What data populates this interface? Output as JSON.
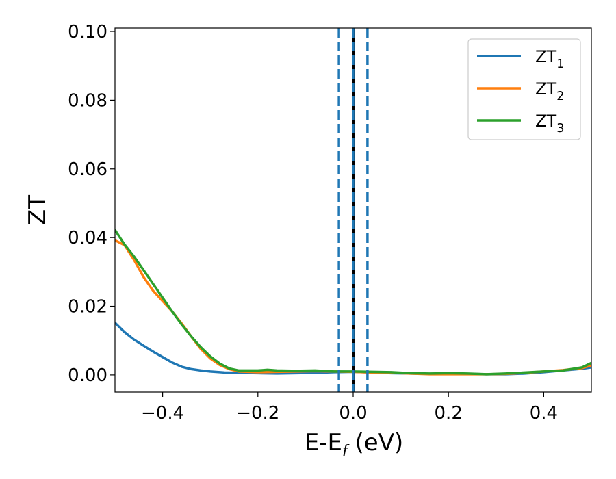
{
  "chart_data": {
    "type": "line",
    "title": "",
    "xlabel": {
      "main": "E-E",
      "subscript": "f",
      "suffix": " (eV)"
    },
    "ylabel": "ZT",
    "xlim": [
      -0.5,
      0.5
    ],
    "ylim": [
      -0.005,
      0.101
    ],
    "xticks": [
      -0.4,
      -0.2,
      0.0,
      0.2,
      0.4
    ],
    "xtick_labels": [
      "−0.4",
      "−0.2",
      "0.0",
      "0.2",
      "0.4"
    ],
    "yticks": [
      0.0,
      0.02,
      0.04,
      0.06,
      0.08,
      0.1
    ],
    "ytick_labels": [
      "0.00",
      "0.02",
      "0.04",
      "0.06",
      "0.08",
      "0.10"
    ],
    "grid": false,
    "legend_position": "top-right",
    "series": [
      {
        "name": "ZT",
        "subscript": "1",
        "color": "#1f77b4",
        "points": [
          [
            -0.5,
            0.0152
          ],
          [
            -0.48,
            0.0125
          ],
          [
            -0.46,
            0.0103
          ],
          [
            -0.44,
            0.0085
          ],
          [
            -0.42,
            0.0068
          ],
          [
            -0.4,
            0.0052
          ],
          [
            -0.38,
            0.0036
          ],
          [
            -0.36,
            0.0024
          ],
          [
            -0.34,
            0.0017
          ],
          [
            -0.32,
            0.0013
          ],
          [
            -0.3,
            0.001
          ],
          [
            -0.27,
            0.0007
          ],
          [
            -0.24,
            0.0006
          ],
          [
            -0.2,
            0.0005
          ],
          [
            -0.16,
            0.0004
          ],
          [
            -0.12,
            0.0005
          ],
          [
            -0.08,
            0.0006
          ],
          [
            -0.04,
            0.0008
          ],
          [
            0.0,
            0.0009
          ],
          [
            0.04,
            0.0007
          ],
          [
            0.08,
            0.0005
          ],
          [
            0.12,
            0.0004
          ],
          [
            0.16,
            0.0003
          ],
          [
            0.2,
            0.0003
          ],
          [
            0.24,
            0.0003
          ],
          [
            0.28,
            0.0002
          ],
          [
            0.32,
            0.0002
          ],
          [
            0.36,
            0.0004
          ],
          [
            0.4,
            0.0008
          ],
          [
            0.44,
            0.0013
          ],
          [
            0.48,
            0.0018
          ],
          [
            0.5,
            0.0022
          ]
        ]
      },
      {
        "name": "ZT",
        "subscript": "2",
        "color": "#ff7f0e",
        "points": [
          [
            -0.5,
            0.0392
          ],
          [
            -0.48,
            0.0378
          ],
          [
            -0.46,
            0.0335
          ],
          [
            -0.44,
            0.0285
          ],
          [
            -0.42,
            0.0245
          ],
          [
            -0.4,
            0.0215
          ],
          [
            -0.38,
            0.0185
          ],
          [
            -0.36,
            0.015
          ],
          [
            -0.34,
            0.0112
          ],
          [
            -0.32,
            0.0076
          ],
          [
            -0.3,
            0.0048
          ],
          [
            -0.28,
            0.0029
          ],
          [
            -0.26,
            0.0017
          ],
          [
            -0.24,
            0.001
          ],
          [
            -0.2,
            0.0008
          ],
          [
            -0.16,
            0.0009
          ],
          [
            -0.12,
            0.001
          ],
          [
            -0.08,
            0.0011
          ],
          [
            -0.04,
            0.001
          ],
          [
            0.0,
            0.0009
          ],
          [
            0.04,
            0.0007
          ],
          [
            0.08,
            0.0006
          ],
          [
            0.12,
            0.0004
          ],
          [
            0.16,
            0.0002
          ],
          [
            0.2,
            0.0002
          ],
          [
            0.24,
            0.0002
          ],
          [
            0.28,
            0.0002
          ],
          [
            0.32,
            0.0003
          ],
          [
            0.36,
            0.0006
          ],
          [
            0.4,
            0.001
          ],
          [
            0.44,
            0.0014
          ],
          [
            0.48,
            0.002
          ],
          [
            0.5,
            0.0028
          ]
        ]
      },
      {
        "name": "ZT",
        "subscript": "3",
        "color": "#2ca02c",
        "points": [
          [
            -0.5,
            0.0422
          ],
          [
            -0.48,
            0.038
          ],
          [
            -0.46,
            0.0345
          ],
          [
            -0.44,
            0.0305
          ],
          [
            -0.42,
            0.0265
          ],
          [
            -0.4,
            0.0225
          ],
          [
            -0.38,
            0.0185
          ],
          [
            -0.36,
            0.0147
          ],
          [
            -0.34,
            0.0112
          ],
          [
            -0.32,
            0.0081
          ],
          [
            -0.3,
            0.0054
          ],
          [
            -0.28,
            0.0033
          ],
          [
            -0.26,
            0.0019
          ],
          [
            -0.24,
            0.0013
          ],
          [
            -0.2,
            0.0013
          ],
          [
            -0.18,
            0.0015
          ],
          [
            -0.16,
            0.0013
          ],
          [
            -0.12,
            0.0012
          ],
          [
            -0.08,
            0.0013
          ],
          [
            -0.04,
            0.001
          ],
          [
            0.0,
            0.001
          ],
          [
            0.04,
            0.0009
          ],
          [
            0.08,
            0.0008
          ],
          [
            0.12,
            0.0005
          ],
          [
            0.16,
            0.0004
          ],
          [
            0.2,
            0.0005
          ],
          [
            0.24,
            0.0004
          ],
          [
            0.28,
            0.0002
          ],
          [
            0.32,
            0.0004
          ],
          [
            0.36,
            0.0007
          ],
          [
            0.4,
            0.001
          ],
          [
            0.44,
            0.0013
          ],
          [
            0.48,
            0.0022
          ],
          [
            0.5,
            0.0035
          ]
        ]
      }
    ],
    "vertical_lines": [
      {
        "x": -0.03,
        "color": "#1f77b4",
        "style": "dashed"
      },
      {
        "x": 0.03,
        "color": "#1f77b4",
        "style": "dashed"
      },
      {
        "x": 0.0,
        "color": "#000000",
        "style": "solid"
      },
      {
        "x": 0.0,
        "color": "#1f77b4",
        "style": "dashed"
      }
    ]
  }
}
